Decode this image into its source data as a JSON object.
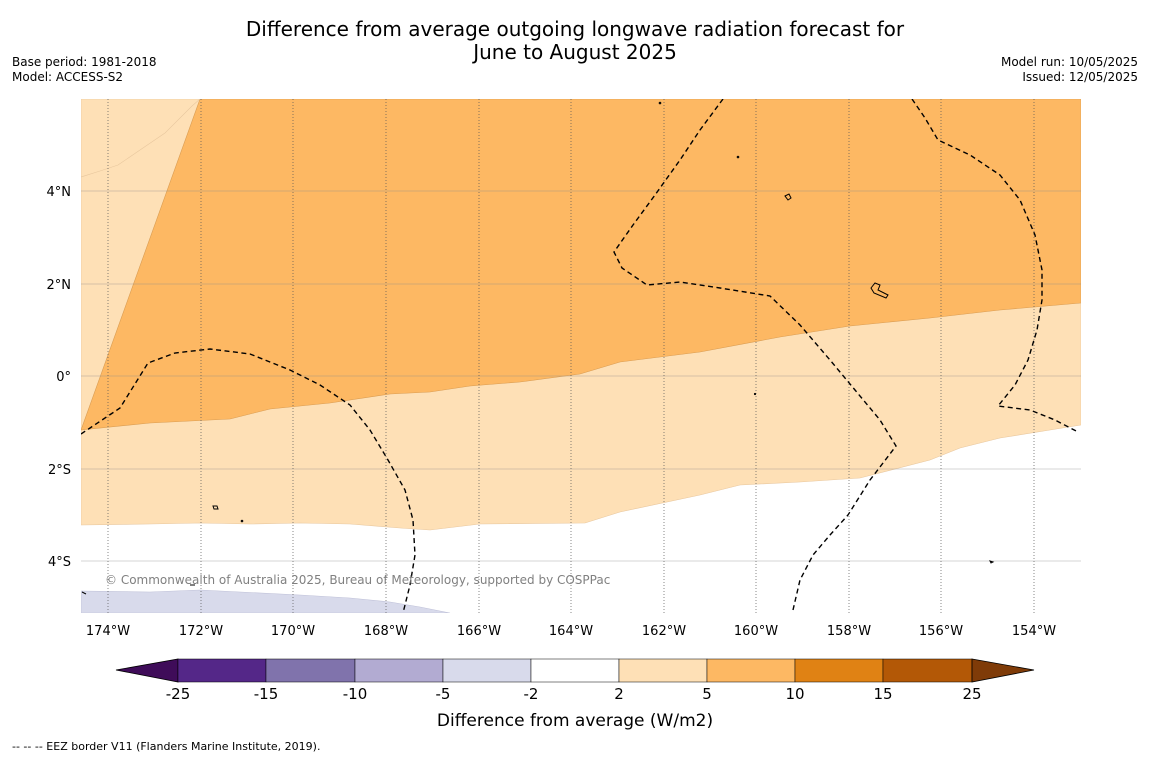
{
  "title_line1": "Difference from average outgoing longwave radiation forecast for",
  "title_line2": "June to August 2025",
  "base_period": "Base period: 1981-2018",
  "model": "Model: ACCESS-S2",
  "model_run": "Model run: 10/05/2025",
  "issued": "Issued: 12/05/2025",
  "copyright": "© Commonwealth of Australia 2025, Bureau of Meteorology, supported by COSPPac",
  "footnote": "--  --  -- EEZ border V11 (Flanders Marine Institute, 2019).",
  "lon_ticks": [
    "174°W",
    "172°W",
    "170°W",
    "168°W",
    "166°W",
    "164°W",
    "162°W",
    "160°W",
    "158°W",
    "156°W",
    "154°W"
  ],
  "lat_ticks": [
    "4°N",
    "2°N",
    "0°",
    "2°S",
    "4°S"
  ],
  "colorbar": {
    "label": "Difference from average (W/m2)",
    "ticks": [
      "-25",
      "-15",
      "-10",
      "-5",
      "-2",
      "2",
      "5",
      "10",
      "15",
      "25"
    ],
    "colors": [
      "#3f0c59",
      "#542788",
      "#8073ac",
      "#b2abd2",
      "#d8daeb",
      "#ffffff",
      "#fee0b6",
      "#fdb863",
      "#e08214",
      "#b35806",
      "#7f3b08"
    ]
  },
  "map_colors": {
    "band_10": "#fdb863",
    "band_5": "#fee0b6",
    "band_2": "#ffffff",
    "band_neg5": "#d8daeb"
  }
}
